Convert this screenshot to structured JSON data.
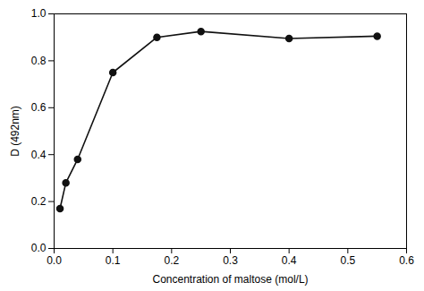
{
  "chart_data": {
    "type": "line",
    "x": [
      0.01,
      0.02,
      0.04,
      0.1,
      0.175,
      0.25,
      0.4,
      0.55
    ],
    "values": [
      0.17,
      0.28,
      0.38,
      0.75,
      0.9,
      0.925,
      0.895,
      0.905
    ],
    "xlabel": "Concentration of maltose (mol/L)",
    "ylabel": "D (492nm)",
    "xlim": [
      0.0,
      0.6
    ],
    "ylim": [
      0.0,
      1.0
    ],
    "xticks": [
      {
        "value": 0.0,
        "label": "0.0"
      },
      0.1,
      0.2,
      0.3,
      0.4,
      0.5,
      0.6
    ],
    "yticks": [
      {
        "value": 0.0,
        "label": "0.0"
      },
      0.2,
      0.4,
      0.6,
      0.8,
      {
        "value": 1.0,
        "label": "1.0"
      }
    ],
    "color": "#111111",
    "marker": "circle"
  }
}
